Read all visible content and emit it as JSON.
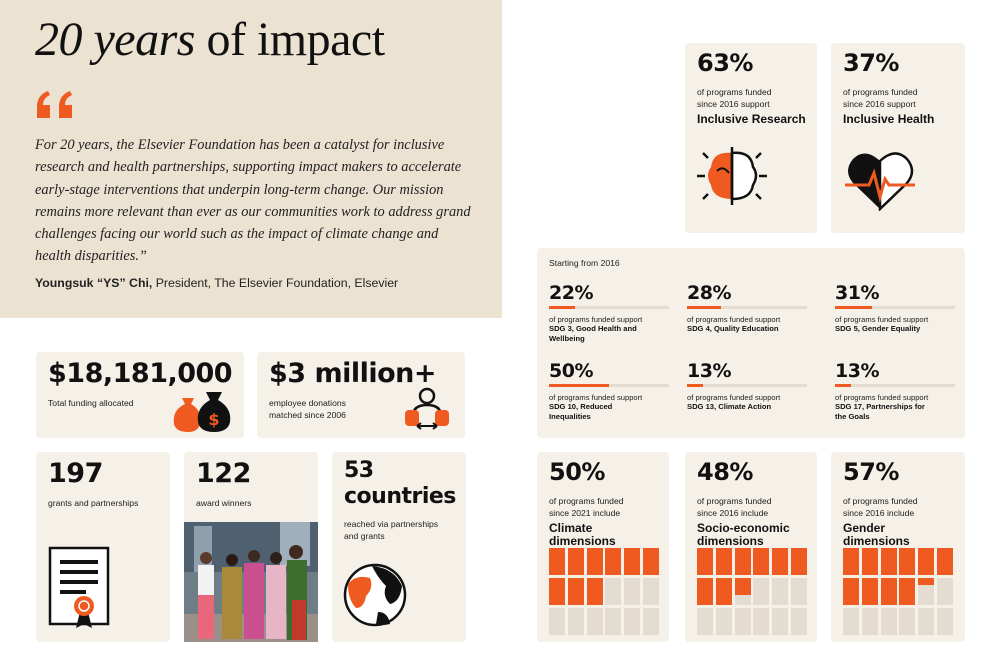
{
  "hero": {
    "title_italic": "20 years",
    "title_rest": " of impact",
    "quote": "For 20 years, the Elsevier Foundation has been a catalyst for inclusive research and health partnerships, supporting impact makers to accelerate early-stage interventions that underpin long-term change. Our mission remains more relevant than ever as our communities work to address grand challenges facing our world such as the impact of climate change and health disparities.”",
    "author": "Youngsuk “YS” Chi,",
    "author_title": " President, The Elsevier Foundation, Elsevier"
  },
  "stats": {
    "funding": {
      "value": "$18,181,000",
      "label": "Total funding allocated"
    },
    "donations": {
      "value": "$3 million+",
      "label_line1": "employee donations",
      "label_line2": "matched since 2006"
    },
    "grants": {
      "value": "197",
      "label": "grants and partnerships"
    },
    "awards": {
      "value": "122",
      "label": "award winners"
    },
    "countries": {
      "value_line1": "53",
      "value_line2": "countries",
      "label_line1": "reached via partnerships",
      "label_line2": "and grants"
    }
  },
  "inclusive_research": {
    "percent": "63%",
    "line1": "of programs funded",
    "line2": "since 2016 support",
    "label": "Inclusive Research"
  },
  "inclusive_health": {
    "percent": "37%",
    "line1": "of programs funded",
    "line2": "since 2016 support",
    "label": "Inclusive Health"
  },
  "sdg": {
    "header": "Starting from 2016",
    "items": [
      {
        "percent": "22%",
        "value": 22,
        "support": "of programs funded support",
        "label": "SDG 3, Good Health and Wellbeing"
      },
      {
        "percent": "28%",
        "value": 28,
        "support": "of programs funded support",
        "label": "SDG 4, Quality Education"
      },
      {
        "percent": "31%",
        "value": 31,
        "support": "of programs funded support",
        "label": "SDG 5, Gender Equality"
      },
      {
        "percent": "50%",
        "value": 50,
        "support": "of programs funded support",
        "label": "SDG 10, Reduced Inequalities"
      },
      {
        "percent": "13%",
        "value": 13,
        "support": "of programs funded support",
        "label": "SDG 13, Climate Action"
      },
      {
        "percent": "13%",
        "value": 13,
        "support": "of programs funded support",
        "label": "SDG 17, Partnerships for the Goals"
      }
    ]
  },
  "dimensions": [
    {
      "percent": "50%",
      "value": 50,
      "line1": "of programs funded",
      "line2": "since 2021 include",
      "label": "Climate dimensions"
    },
    {
      "percent": "48%",
      "value": 48,
      "line1": "of programs funded",
      "line2": "since 2016 include",
      "label": "Socio-economic dimensions"
    },
    {
      "percent": "57%",
      "value": 57,
      "line1": "of programs funded",
      "line2": "since 2016 include",
      "label": "Gender dimensions"
    }
  ],
  "colors": {
    "accent": "#ee5a1f",
    "card": "#f5f0e8",
    "hero": "#ebe2d1",
    "track": "#e4dcd0"
  }
}
